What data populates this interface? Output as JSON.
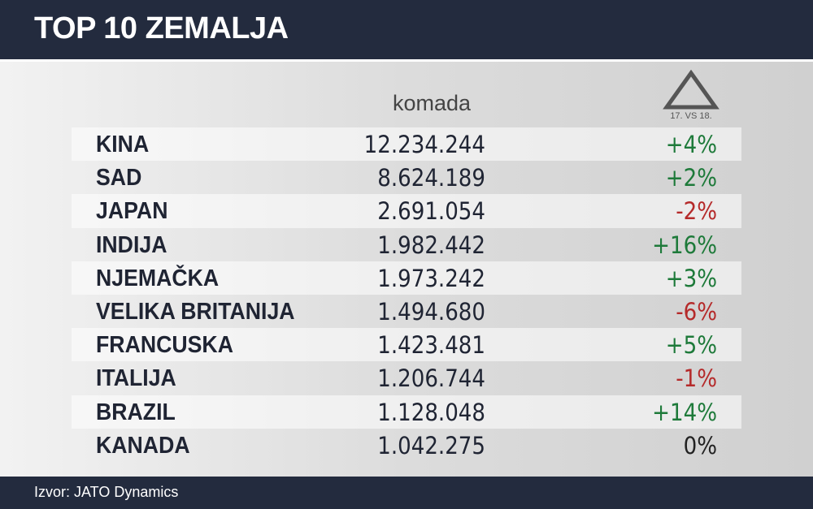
{
  "header": {
    "title": "TOP 10 ZEMALJA"
  },
  "table": {
    "columns": {
      "units": "komada",
      "change": "17. VS 18."
    },
    "rows": [
      [
        "KINA",
        "12.234.244",
        "+4%"
      ],
      [
        "SAD",
        "8.624.189",
        "+2%"
      ],
      [
        "JAPAN",
        "2.691.054",
        "-2%"
      ],
      [
        "INDIJA",
        "1.982.442",
        "+16%"
      ],
      [
        "NJEMAČKA",
        "1.973.242",
        "+3%"
      ],
      [
        "VELIKA BRITANIJA",
        "1.494.680",
        "-6%"
      ],
      [
        "FRANCUSKA",
        "1.423.481",
        "+5%"
      ],
      [
        "ITALIJA",
        "1.206.744",
        "-1%"
      ],
      [
        "BRAZIL",
        "1.128.048",
        "+14%"
      ],
      [
        "KANADA",
        "1.042.275",
        "0%"
      ]
    ]
  },
  "footer": {
    "source": "Izvor: JATO Dynamics"
  }
}
